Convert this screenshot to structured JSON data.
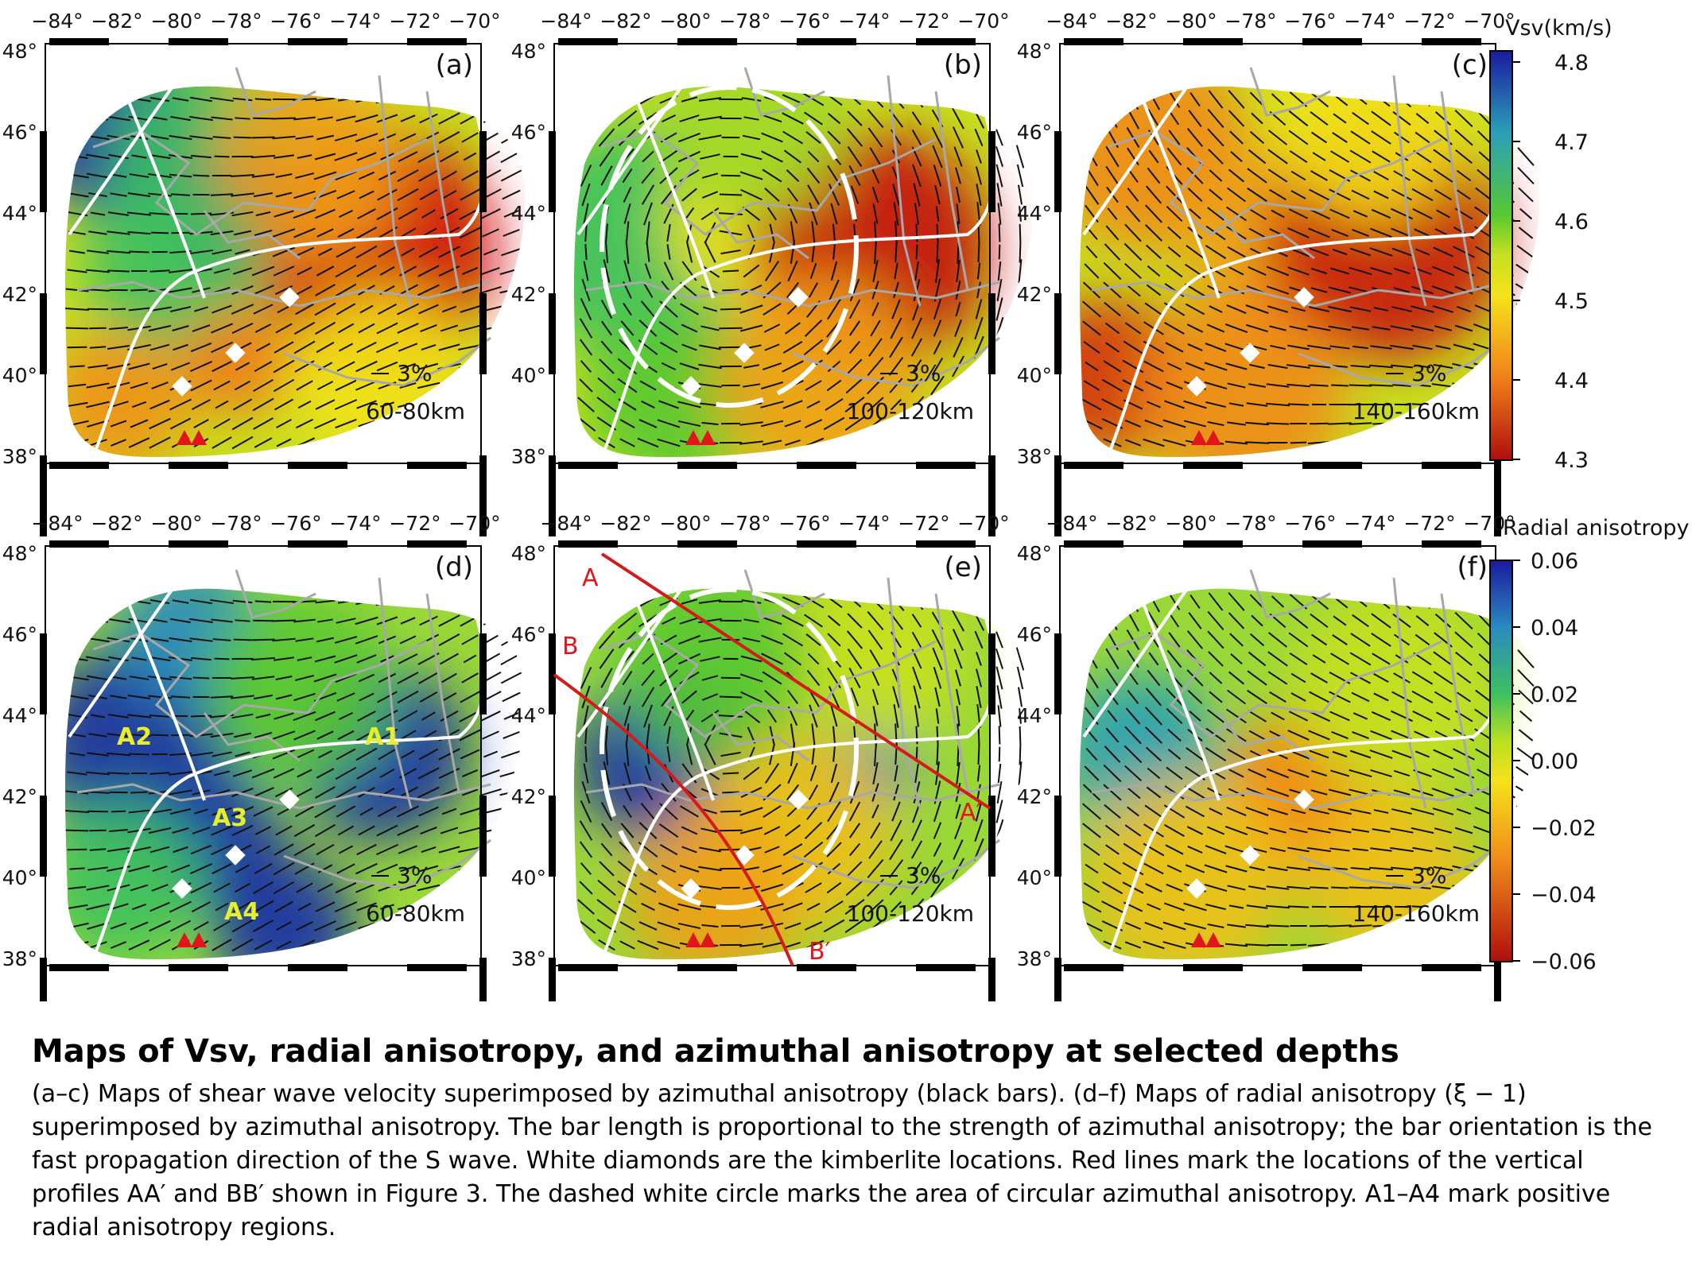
{
  "figure": {
    "x_ticks": [
      "−84°",
      "−82°",
      "−80°",
      "−78°",
      "−76°",
      "−74°",
      "−72°",
      "−70°"
    ],
    "y_ticks": [
      "48°",
      "46°",
      "44°",
      "42°",
      "40°",
      "38°"
    ],
    "panels": [
      {
        "id": "a",
        "label": "(a)",
        "depth": "60-80km",
        "scale": "3%",
        "field": "vsv"
      },
      {
        "id": "b",
        "label": "(b)",
        "depth": "100-120km",
        "scale": "3%",
        "field": "vsv"
      },
      {
        "id": "c",
        "label": "(c)",
        "depth": "140-160km",
        "scale": "3%",
        "field": "vsv"
      },
      {
        "id": "d",
        "label": "(d)",
        "depth": "60-80km",
        "scale": "3%",
        "field": "rad"
      },
      {
        "id": "e",
        "label": "(e)",
        "depth": "100-120km",
        "scale": "3%",
        "field": "rad"
      },
      {
        "id": "f",
        "label": "(f)",
        "depth": "140-160km",
        "scale": "3%",
        "field": "rad"
      }
    ],
    "region_labels": [
      "A1",
      "A2",
      "A3",
      "A4"
    ],
    "profile_labels": [
      "A",
      "A′",
      "B",
      "B′"
    ],
    "colorbar_vsv": {
      "title": "Vsv(km/s)",
      "ticks": [
        "4.8",
        "4.7",
        "4.6",
        "4.5",
        "4.4",
        "4.3"
      ]
    },
    "colorbar_rad": {
      "title": "Radial anisotropy",
      "ticks": [
        "0.06",
        "0.04",
        "0.02",
        "0.00",
        "−0.02",
        "−0.04",
        "−0.06"
      ]
    },
    "colors": {
      "blue": "#1a2fa8",
      "green": "#40c030",
      "yellow": "#f2e21a",
      "orange": "#f08a1a",
      "red": "#c01010",
      "kimberlite": "#ffffff",
      "volcano": "#e0161b",
      "profile_line": "#d51a1a"
    }
  },
  "caption": {
    "title": "Maps of Vsv, radial anisotropy, and azimuthal anisotropy at selected depths",
    "body": "(a–c) Maps of shear wave velocity superimposed by azimuthal anisotropy (black bars). (d–f) Maps of radial anisotropy (ξ − 1) superimposed by azimuthal anisotropy. The bar length is proportional to the strength of azimuthal anisotropy; the bar orientation is the fast propagation direction of the S wave. White diamonds are the kimberlite locations. Red lines mark the locations of the vertical profiles AA′ and BB′ shown in Figure 3. The dashed white circle marks the area of circular azimuthal anisotropy. A1–A4 mark positive radial anisotropy regions."
  }
}
